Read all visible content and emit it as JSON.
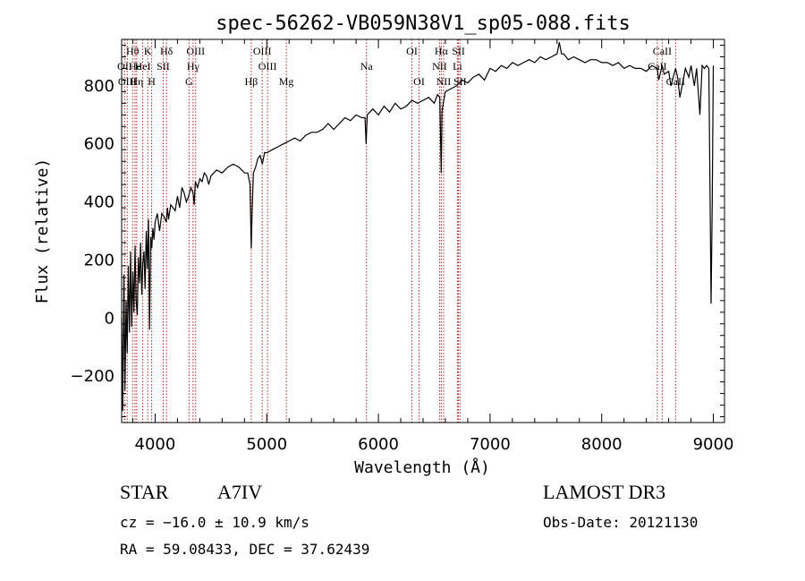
{
  "chart_data": {
    "type": "line",
    "title": "spec-56262-VB059N38V1_sp05-088.fits",
    "xlabel": "Wavelength (Å)",
    "ylabel": "Flux (relative)",
    "xlim": [
      3700,
      9100
    ],
    "ylim": [
      -360,
      960
    ],
    "x_ticks": [
      4000,
      5000,
      6000,
      7000,
      8000,
      9000
    ],
    "y_ticks": [
      -200,
      0,
      200,
      400,
      600,
      800
    ],
    "series": [
      {
        "name": "flux",
        "x": [
          3700,
          3710,
          3720,
          3730,
          3740,
          3750,
          3760,
          3770,
          3780,
          3790,
          3800,
          3810,
          3820,
          3830,
          3840,
          3850,
          3860,
          3870,
          3880,
          3890,
          3900,
          3910,
          3920,
          3930,
          3940,
          3950,
          3960,
          3970,
          3980,
          3990,
          4000,
          4020,
          4040,
          4060,
          4080,
          4100,
          4110,
          4120,
          4140,
          4160,
          4180,
          4200,
          4220,
          4240,
          4260,
          4280,
          4300,
          4320,
          4340,
          4350,
          4360,
          4380,
          4400,
          4420,
          4440,
          4460,
          4480,
          4500,
          4550,
          4600,
          4650,
          4700,
          4750,
          4800,
          4830,
          4850,
          4861,
          4870,
          4880,
          4900,
          4920,
          4940,
          4960,
          4980,
          5000,
          5050,
          5100,
          5150,
          5200,
          5250,
          5300,
          5350,
          5400,
          5450,
          5500,
          5550,
          5600,
          5650,
          5700,
          5750,
          5800,
          5850,
          5880,
          5890,
          5900,
          5950,
          6000,
          6050,
          6100,
          6150,
          6200,
          6250,
          6300,
          6350,
          6400,
          6450,
          6500,
          6530,
          6550,
          6563,
          6570,
          6580,
          6600,
          6650,
          6700,
          6750,
          6800,
          6850,
          6900,
          6950,
          7000,
          7050,
          7100,
          7150,
          7200,
          7250,
          7300,
          7350,
          7400,
          7450,
          7500,
          7550,
          7600,
          7620,
          7640,
          7660,
          7700,
          7750,
          7800,
          7850,
          7900,
          7950,
          8000,
          8050,
          8100,
          8150,
          8200,
          8250,
          8300,
          8350,
          8400,
          8450,
          8498,
          8510,
          8542,
          8560,
          8600,
          8620,
          8662,
          8680,
          8700,
          8750,
          8780,
          8800,
          8830,
          8850,
          8880,
          8900,
          8920,
          8940,
          8960,
          8980,
          8990,
          9000
        ],
        "y": [
          0,
          -320,
          150,
          -250,
          60,
          -120,
          180,
          -50,
          230,
          -30,
          160,
          20,
          250,
          60,
          10,
          210,
          120,
          260,
          80,
          190,
          230,
          100,
          300,
          170,
          340,
          -40,
          280,
          240,
          310,
          270,
          330,
          360,
          300,
          360,
          350,
          330,
          380,
          340,
          390,
          380,
          370,
          420,
          380,
          450,
          430,
          400,
          420,
          450,
          430,
          390,
          470,
          450,
          480,
          470,
          500,
          490,
          460,
          490,
          510,
          500,
          520,
          530,
          520,
          500,
          500,
          460,
          240,
          380,
          500,
          520,
          550,
          560,
          530,
          570,
          570,
          580,
          590,
          600,
          610,
          620,
          610,
          630,
          640,
          640,
          650,
          670,
          650,
          670,
          690,
          680,
          700,
          690,
          690,
          600,
          700,
          720,
          700,
          730,
          710,
          740,
          720,
          730,
          750,
          740,
          750,
          760,
          740,
          770,
          760,
          500,
          710,
          740,
          780,
          790,
          800,
          820,
          810,
          830,
          840,
          820,
          860,
          850,
          870,
          860,
          880,
          870,
          880,
          890,
          880,
          900,
          890,
          900,
          910,
          950,
          910,
          910,
          890,
          900,
          890,
          880,
          890,
          890,
          880,
          880,
          870,
          880,
          860,
          870,
          860,
          860,
          850,
          870,
          860,
          820,
          870,
          840,
          850,
          800,
          860,
          830,
          760,
          860,
          830,
          870,
          800,
          860,
          700,
          870,
          860,
          870,
          860,
          50,
          400,
          870
        ]
      }
    ],
    "line_markers": [
      {
        "label": "Hθ",
        "wavelength": 3798,
        "row": 1
      },
      {
        "label": "OII",
        "wavelength": 3727,
        "row": 2
      },
      {
        "label": "OIII",
        "wavelength": 3750,
        "row": 3
      },
      {
        "label": "He",
        "wavelength": 3820,
        "row": 2
      },
      {
        "label": "Hη",
        "wavelength": 3835,
        "row": 3
      },
      {
        "label": "K",
        "wavelength": 3934,
        "row": 1
      },
      {
        "label": "HeI",
        "wavelength": 3889,
        "row": 2
      },
      {
        "label": "H",
        "wavelength": 3969,
        "row": 3
      },
      {
        "label": "SII",
        "wavelength": 4072,
        "row": 2
      },
      {
        "label": "Hδ",
        "wavelength": 4102,
        "row": 1
      },
      {
        "label": "OIII",
        "wavelength": 4363,
        "row": 1
      },
      {
        "label": "Hγ",
        "wavelength": 4340,
        "row": 2
      },
      {
        "label": "G",
        "wavelength": 4304,
        "row": 3
      },
      {
        "label": "Hβ",
        "wavelength": 4861,
        "row": 3
      },
      {
        "label": "OIII",
        "wavelength": 4959,
        "row": 1
      },
      {
        "label": "OIII",
        "wavelength": 5007,
        "row": 2
      },
      {
        "label": "Mg",
        "wavelength": 5175,
        "row": 3
      },
      {
        "label": "Na",
        "wavelength": 5893,
        "row": 2
      },
      {
        "label": "OI",
        "wavelength": 6300,
        "row": 1
      },
      {
        "label": "OI",
        "wavelength": 6364,
        "row": 3
      },
      {
        "label": "Hα",
        "wavelength": 6563,
        "row": 1
      },
      {
        "label": "NII",
        "wavelength": 6548,
        "row": 2
      },
      {
        "label": "NII",
        "wavelength": 6584,
        "row": 3
      },
      {
        "label": "SII",
        "wavelength": 6717,
        "row": 1
      },
      {
        "label": "Li",
        "wavelength": 6708,
        "row": 2
      },
      {
        "label": "SII",
        "wavelength": 6731,
        "row": 3
      },
      {
        "label": "CaII",
        "wavelength": 8542,
        "row": 1
      },
      {
        "label": "CaII",
        "wavelength": 8498,
        "row": 2
      },
      {
        "label": "CaII",
        "wavelength": 8662,
        "row": 3
      }
    ]
  },
  "footer": {
    "object_class": "STAR",
    "subclass": "A7IV",
    "survey": "LAMOST DR3",
    "redshift_line": "cz = −16.0 ± 10.9 km/s",
    "obs_date": "Obs-Date: 20121130",
    "coords": "RA =  59.08433, DEC =  37.62439"
  },
  "colors": {
    "line_marker": "#b22222",
    "spectrum": "#000000"
  }
}
